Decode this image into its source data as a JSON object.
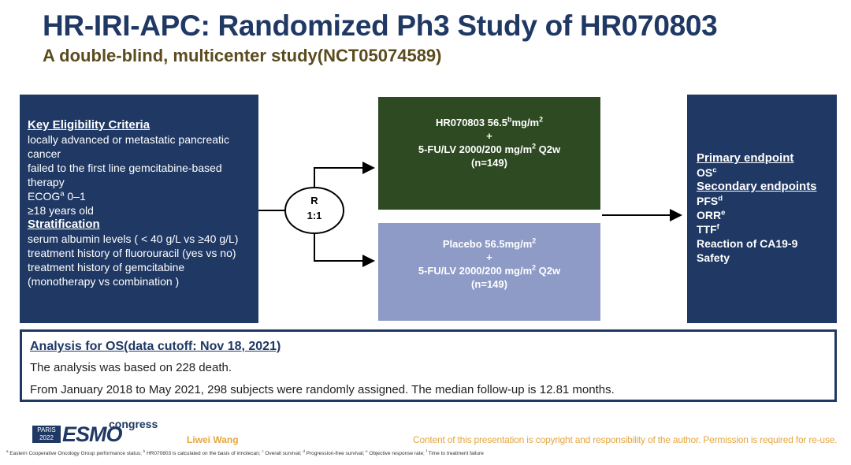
{
  "header": {
    "title": "HR-IRI-APC: Randomized Ph3 Study of HR070803",
    "subtitle": "A double-blind, multicenter study(NCT05074589)"
  },
  "eligibility_box": {
    "sections": [
      {
        "heading": "Key Eligibility Criteria",
        "items": [
          [
            "locally advanced or metastatic pancreatic cancer"
          ],
          [
            "failed to the first line gemcitabine-based therapy"
          ],
          [
            "ECOG",
            {
              "sup": "a"
            },
            " 0–1"
          ],
          [
            "≥18 years old"
          ]
        ]
      },
      {
        "heading": "Stratification",
        "items": [
          [
            "serum albumin levels ( < 40 g/L vs ≥40 g/L)"
          ],
          [
            "treatment history of fluorouracil (yes vs no)"
          ],
          [
            "treatment history of gemcitabine (monotherapy vs combination )"
          ]
        ]
      }
    ]
  },
  "randomization": {
    "label": "R",
    "ratio": "1:1"
  },
  "arms": [
    {
      "lines": [
        [
          "HR070803 56.5",
          {
            "sup": "b"
          },
          "mg/m",
          {
            "sup": "2"
          }
        ],
        [
          "+"
        ],
        [
          "5-FU/LV 2000/200 mg/m",
          {
            "sup": "2"
          },
          " Q2w"
        ],
        [
          "(n=149)"
        ]
      ]
    },
    {
      "lines": [
        [
          "Placebo 56.5mg/m",
          {
            "sup": "2"
          }
        ],
        [
          "+"
        ],
        [
          "5-FU/LV 2000/200 mg/m",
          {
            "sup": "2"
          },
          " Q2w"
        ],
        [
          "(n=149)"
        ]
      ]
    }
  ],
  "endpoints_box": {
    "sections": [
      {
        "heading": "Primary endpoint",
        "items": [
          [
            "OS",
            {
              "sup": "c"
            }
          ]
        ]
      },
      {
        "heading": "Secondary endpoints",
        "items": [
          [
            "PFS",
            {
              "sup": "d"
            }
          ],
          [
            "ORR",
            {
              "sup": "e"
            }
          ],
          [
            "TTF",
            {
              "sup": "f"
            }
          ],
          [
            "Reaction of CA19-9"
          ],
          [
            "Safety"
          ]
        ]
      }
    ]
  },
  "analysis": {
    "title": "Analysis for OS(data cutoff: Nov 18, 2021)",
    "lines": [
      "The analysis was based on 228 death.",
      "From January 2018 to May 2021, 298 subjects were randomly assigned. The median follow-up is 12.81 months."
    ]
  },
  "footer": {
    "logo": {
      "city": "PARIS",
      "year": "2022",
      "brand": "ESMO",
      "word": "congress"
    },
    "author": "Liwei Wang",
    "copyright": "Content of this presentation is copyright and responsibility of the author. Permission is required for re-use.",
    "footnote": [
      {
        "sup": "a"
      },
      " Eastern Cooperative Oncology Group performance status; ",
      {
        "sup": "b"
      },
      " HR070803 is calculated on the basis of irinotecan; ",
      {
        "sup": "c"
      },
      " Overall survival; ",
      {
        "sup": "d"
      },
      " Progression-free survival; ",
      {
        "sup": "e"
      },
      " Objective response rate; ",
      {
        "sup": "f"
      },
      " Time to treatment failure"
    ]
  }
}
